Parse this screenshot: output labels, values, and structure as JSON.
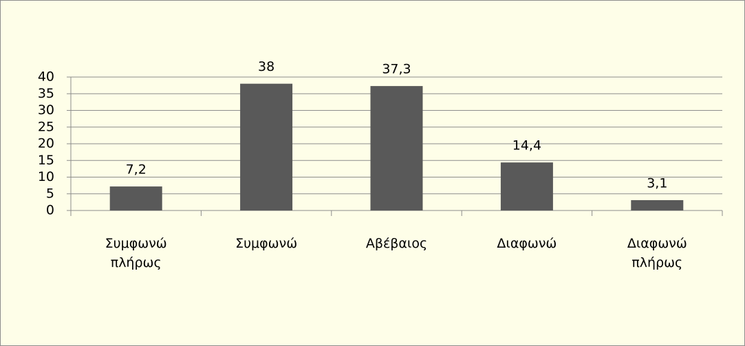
{
  "chart_data": {
    "type": "bar",
    "categories": [
      "Συμφωνώ πλήρως",
      "Συμφωνώ",
      "Αβέβαιος",
      "Διαφωνώ",
      "Διαφωνώ πλήρως"
    ],
    "values": [
      7.2,
      38,
      37.3,
      14.4,
      3.1
    ],
    "value_labels": [
      "7,2",
      "38",
      "37,3",
      "14,4",
      "3,1"
    ],
    "color": "#595959",
    "ylim": [
      0,
      40
    ],
    "yticks": [
      0,
      5,
      10,
      15,
      20,
      25,
      30,
      35,
      40
    ],
    "grid": true
  }
}
